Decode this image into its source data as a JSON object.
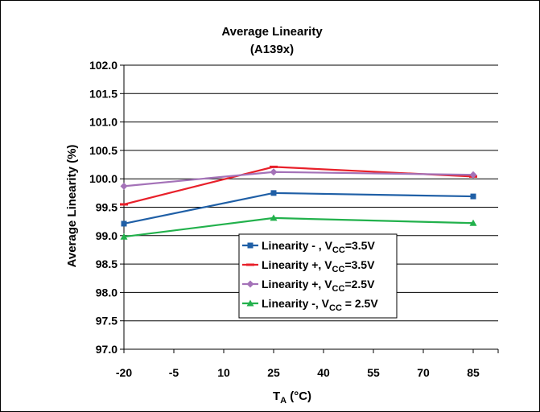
{
  "chart_data": {
    "type": "line",
    "title": "Average Linearity",
    "subtitle": "(A139x)",
    "xlabel": {
      "main": "T",
      "sub": "A",
      "rest": " (°C)"
    },
    "ylabel": "Average Linearity (%)",
    "x_ticks": [
      "-20",
      "-5",
      "10",
      "25",
      "40",
      "55",
      "70",
      "85"
    ],
    "x_tick_values": [
      -20,
      -5,
      10,
      25,
      40,
      55,
      70,
      85
    ],
    "xlim": [
      -20,
      92.5
    ],
    "y_ticks": [
      "102.0",
      "101.5",
      "101.0",
      "100.5",
      "100.0",
      "99.5",
      "99.0",
      "98.5",
      "98.0",
      "97.5",
      "97.0"
    ],
    "ylim": [
      97.0,
      102.0
    ],
    "y_step": 0.5,
    "grid": "horizontal",
    "legend_position": "lower-center",
    "x": [
      -20,
      25,
      85
    ],
    "series": [
      {
        "name": "Linearity - , VCC=3.5V",
        "legend": {
          "pre": "Linearity - , V",
          "sub": "CC",
          "post": "=3.5V"
        },
        "color": "#1f5fa6",
        "marker": "square",
        "values": [
          99.21,
          99.75,
          99.69
        ]
      },
      {
        "name": "Linearity +, VCC=3.5V",
        "legend": {
          "pre": "Linearity +, V",
          "sub": "CC",
          "post": "=3.5V"
        },
        "color": "#e8202a",
        "marker": "dash",
        "values": [
          99.55,
          100.21,
          100.04
        ]
      },
      {
        "name": "Linearity +, VCC=2.5V",
        "legend": {
          "pre": "Linearity +, V",
          "sub": "CC",
          "post": "=2.5V"
        },
        "color": "#a472b8",
        "marker": "diamond",
        "values": [
          99.87,
          100.12,
          100.07
        ]
      },
      {
        "name": "Linearity -, VCC = 2.5V",
        "legend": {
          "pre": "Linearity -, V",
          "sub": "CC",
          "post": " = 2.5V"
        },
        "color": "#22b14c",
        "marker": "triangle",
        "values": [
          98.98,
          99.31,
          99.22
        ]
      }
    ]
  }
}
